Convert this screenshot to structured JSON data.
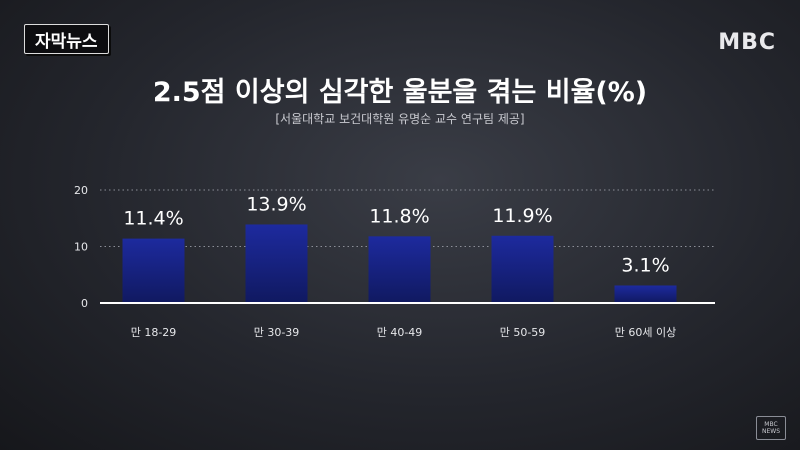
{
  "badge": {
    "label": "자막뉴스"
  },
  "logo": {
    "text": "MBC"
  },
  "corner": {
    "line1": "MBC",
    "line2": "NEWS"
  },
  "colors": {
    "bar_top": "#1d2a9e",
    "bar_bottom": "#101960",
    "axis": "#ffffff",
    "grid": "#8c8f98"
  },
  "chart_data": {
    "type": "bar",
    "title": "2.5점 이상의 심각한 울분을 겪는 비율(%)",
    "subtitle": "[서울대학교 보건대학원 유명순 교수 연구팀 제공]",
    "categories": [
      "만 18-29",
      "만 30-39",
      "만 40-49",
      "만 50-59",
      "만 60세 이상"
    ],
    "values": [
      11.4,
      13.9,
      11.8,
      11.9,
      3.1
    ],
    "data_labels": [
      "11.4%",
      "13.9%",
      "11.8%",
      "11.9%",
      "3.1%"
    ],
    "ylim": [
      0,
      20
    ],
    "yticks": [
      0,
      10,
      20
    ],
    "xlabel": "",
    "ylabel": "",
    "grid": true
  }
}
